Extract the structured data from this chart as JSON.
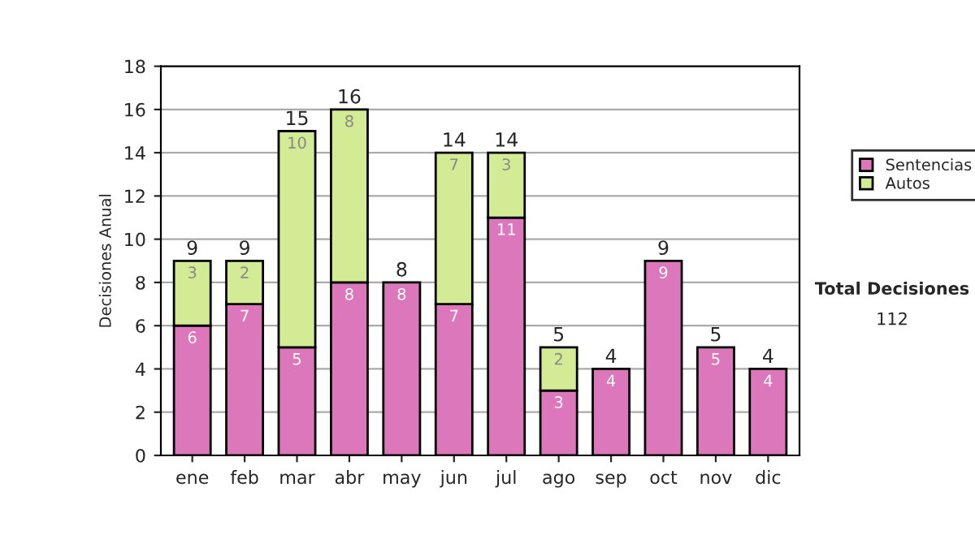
{
  "chart_data": {
    "type": "bar",
    "stacked": true,
    "ylabel": "Decisiones Anual",
    "categories": [
      "ene",
      "feb",
      "mar",
      "abr",
      "may",
      "jun",
      "jul",
      "ago",
      "sep",
      "oct",
      "nov",
      "dic"
    ],
    "series": [
      {
        "name": "Sentencias",
        "color": "#dd77bb",
        "values": [
          6,
          7,
          5,
          8,
          8,
          7,
          11,
          3,
          4,
          9,
          5,
          4
        ]
      },
      {
        "name": "Autos",
        "color": "#d4eb96",
        "values": [
          3,
          2,
          10,
          8,
          null,
          7,
          3,
          2,
          null,
          null,
          null,
          null
        ]
      }
    ],
    "totals": [
      "9",
      "9",
      "15",
      "16",
      "8",
      "14",
      "14",
      "5",
      "4",
      "9",
      "5",
      "4"
    ],
    "data_labels": true,
    "ylim": [
      0,
      18
    ],
    "yticks": [
      0,
      2,
      4,
      6,
      8,
      10,
      12,
      14,
      16,
      18
    ],
    "grid": "y",
    "legend": "right",
    "annotations": [
      "Total Decisiones",
      "112"
    ]
  }
}
